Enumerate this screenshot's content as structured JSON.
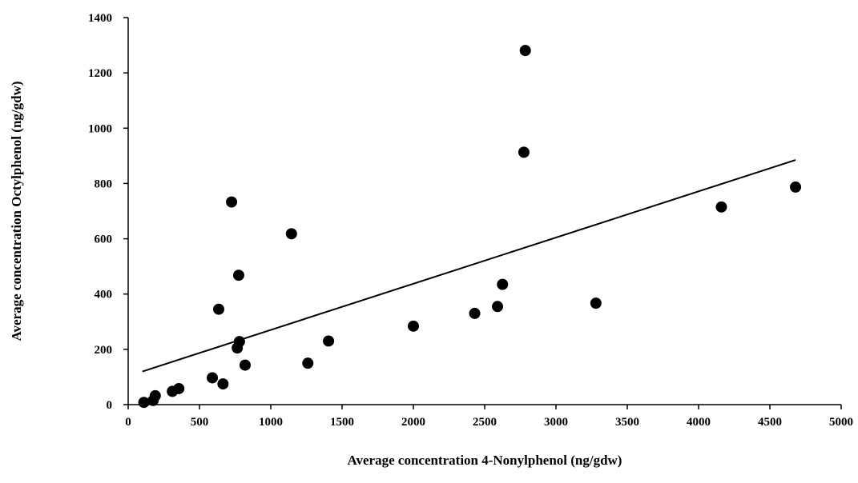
{
  "chart_data": {
    "type": "scatter",
    "title": "",
    "xlabel": "Average concentration 4-Nonylphenol (ng/gdw)",
    "ylabel": "Average concentration Octylphenol (ng/gdw)",
    "xlim": [
      0,
      5000
    ],
    "ylim": [
      0,
      1400
    ],
    "xticks": [
      0,
      500,
      1000,
      1500,
      2000,
      2500,
      3000,
      3500,
      4000,
      4500,
      5000
    ],
    "yticks": [
      0,
      200,
      400,
      600,
      800,
      1000,
      1200,
      1400
    ],
    "grid": false,
    "legend": "none",
    "points": [
      {
        "x": 110,
        "y": 8
      },
      {
        "x": 175,
        "y": 15
      },
      {
        "x": 190,
        "y": 32
      },
      {
        "x": 310,
        "y": 48
      },
      {
        "x": 355,
        "y": 58
      },
      {
        "x": 590,
        "y": 97
      },
      {
        "x": 635,
        "y": 345
      },
      {
        "x": 665,
        "y": 75
      },
      {
        "x": 725,
        "y": 733
      },
      {
        "x": 765,
        "y": 205
      },
      {
        "x": 775,
        "y": 468
      },
      {
        "x": 780,
        "y": 228
      },
      {
        "x": 820,
        "y": 143
      },
      {
        "x": 1145,
        "y": 618
      },
      {
        "x": 1260,
        "y": 150
      },
      {
        "x": 1405,
        "y": 230
      },
      {
        "x": 2000,
        "y": 284
      },
      {
        "x": 2430,
        "y": 330
      },
      {
        "x": 2590,
        "y": 355
      },
      {
        "x": 2625,
        "y": 435
      },
      {
        "x": 2775,
        "y": 913
      },
      {
        "x": 2785,
        "y": 1281
      },
      {
        "x": 3280,
        "y": 367
      },
      {
        "x": 4160,
        "y": 715
      },
      {
        "x": 4680,
        "y": 787
      }
    ],
    "trendline": {
      "type": "linear",
      "x": [
        100,
        4680
      ],
      "y": [
        120,
        885
      ]
    },
    "colors": {
      "marker": "#000000",
      "line": "#000000",
      "axis": "#000000"
    }
  }
}
